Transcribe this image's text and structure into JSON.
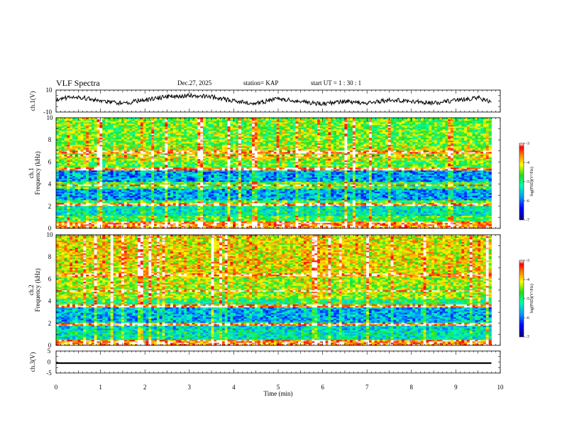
{
  "header": {
    "title": "VLF Spectra",
    "date": "Dec.27, 2025",
    "station": "station= KAP",
    "start_ut": "start UT =  1 : 30 : 1"
  },
  "colors": {
    "low": "#000080",
    "mid_low": "#00a0ff",
    "mid": "#20e020",
    "mid_high": "#ffff00",
    "high": "#ff0000",
    "top": "#ffffff",
    "trace": "#000000"
  },
  "chart_data": [
    {
      "type": "line",
      "name": "ch1-waveform",
      "ylabel": "ch.1(V)",
      "ylim": [
        -10,
        10
      ],
      "ytick_labels": [
        "10",
        "-10"
      ],
      "xlim": [
        0,
        10
      ],
      "description_values": {
        "x_min": [
          0,
          0.5,
          1,
          1.5,
          2,
          2.5,
          3,
          3.5,
          4,
          4.5,
          5,
          5.5,
          6,
          6.5,
          7,
          7.5,
          8,
          8.5,
          9,
          9.5,
          9.8
        ],
        "y_v": [
          2,
          4,
          0,
          -2,
          1,
          4,
          5,
          4,
          0,
          -2,
          2,
          0,
          -3,
          0,
          -2,
          1,
          0,
          -2,
          1,
          3,
          -1
        ]
      }
    },
    {
      "type": "heatmap",
      "name": "ch1-spectrogram",
      "ylabel": "ch.1",
      "ylabel2": "Frequency (kHz)",
      "ylim": [
        0,
        10
      ],
      "ytick_labels": [
        "0",
        "2",
        "4",
        "6",
        "8",
        "10"
      ],
      "xlim": [
        0,
        9.8
      ],
      "colorbar": {
        "label": "log(PSD)(V²/Hz)",
        "range": [
          -7,
          -3
        ],
        "tick_labels": [
          "-3",
          "-4",
          "-5",
          "-6",
          "-7"
        ]
      },
      "band_levels": [
        {
          "f": [
            0,
            0.6
          ],
          "level": -3.6
        },
        {
          "f": [
            0.6,
            1.2
          ],
          "level": -4.8
        },
        {
          "f": [
            1.2,
            2.0
          ],
          "level": -5.3
        },
        {
          "f": [
            2.0,
            2.6
          ],
          "level": -4.8
        },
        {
          "f": [
            2.6,
            3.6
          ],
          "level": -5.8
        },
        {
          "f": [
            3.6,
            4.2
          ],
          "level": -4.8
        },
        {
          "f": [
            4.2,
            5.2
          ],
          "level": -5.8
        },
        {
          "f": [
            5.2,
            6.2
          ],
          "level": -4.7
        },
        {
          "f": [
            6.2,
            7.4
          ],
          "level": -4.3
        },
        {
          "f": [
            7.4,
            10
          ],
          "level": -4.6
        }
      ],
      "strong_lines_kHz": [
        0.3,
        0.6,
        2.2,
        3.9,
        5.4,
        6.6,
        6.9
      ]
    },
    {
      "type": "heatmap",
      "name": "ch2-spectrogram",
      "ylabel": "ch.2",
      "ylabel2": "Frequency (kHz)",
      "ylim": [
        0,
        10
      ],
      "ytick_labels": [
        "0",
        "2",
        "4",
        "6",
        "8",
        "10"
      ],
      "xlim": [
        0,
        9.8
      ],
      "colorbar": {
        "label": "log(PSD)(V²/Hz)",
        "range": [
          -7,
          -3
        ],
        "tick_labels": [
          "-3",
          "-4",
          "-5",
          "-6",
          "-7"
        ]
      },
      "band_levels": [
        {
          "f": [
            0,
            0.5
          ],
          "level": -3.5
        },
        {
          "f": [
            0.5,
            1.4
          ],
          "level": -5.3
        },
        {
          "f": [
            1.4,
            2.2
          ],
          "level": -5.5
        },
        {
          "f": [
            2.2,
            3.4
          ],
          "level": -5.7
        },
        {
          "f": [
            3.4,
            4.2
          ],
          "level": -5.0
        },
        {
          "f": [
            4.2,
            6.2
          ],
          "level": -4.4
        },
        {
          "f": [
            6.2,
            10
          ],
          "level": -4.1
        }
      ],
      "strong_lines_kHz": [
        0.2,
        1.9,
        3.6,
        4.9,
        6.4
      ]
    },
    {
      "type": "line",
      "name": "ch3-waveform",
      "ylabel": "ch.3(V)",
      "ylim": [
        -5,
        5
      ],
      "ytick_labels": [
        "5",
        "0",
        "-5"
      ],
      "xlim": [
        0,
        10
      ],
      "description_values": {
        "x_min": [
          0,
          9.8
        ],
        "y_v": [
          -0.5,
          -0.5
        ]
      }
    }
  ],
  "xaxis": {
    "label": "Time (min)",
    "tick_labels": [
      "0",
      "1",
      "2",
      "3",
      "4",
      "5",
      "6",
      "7",
      "8",
      "9",
      "10"
    ]
  }
}
